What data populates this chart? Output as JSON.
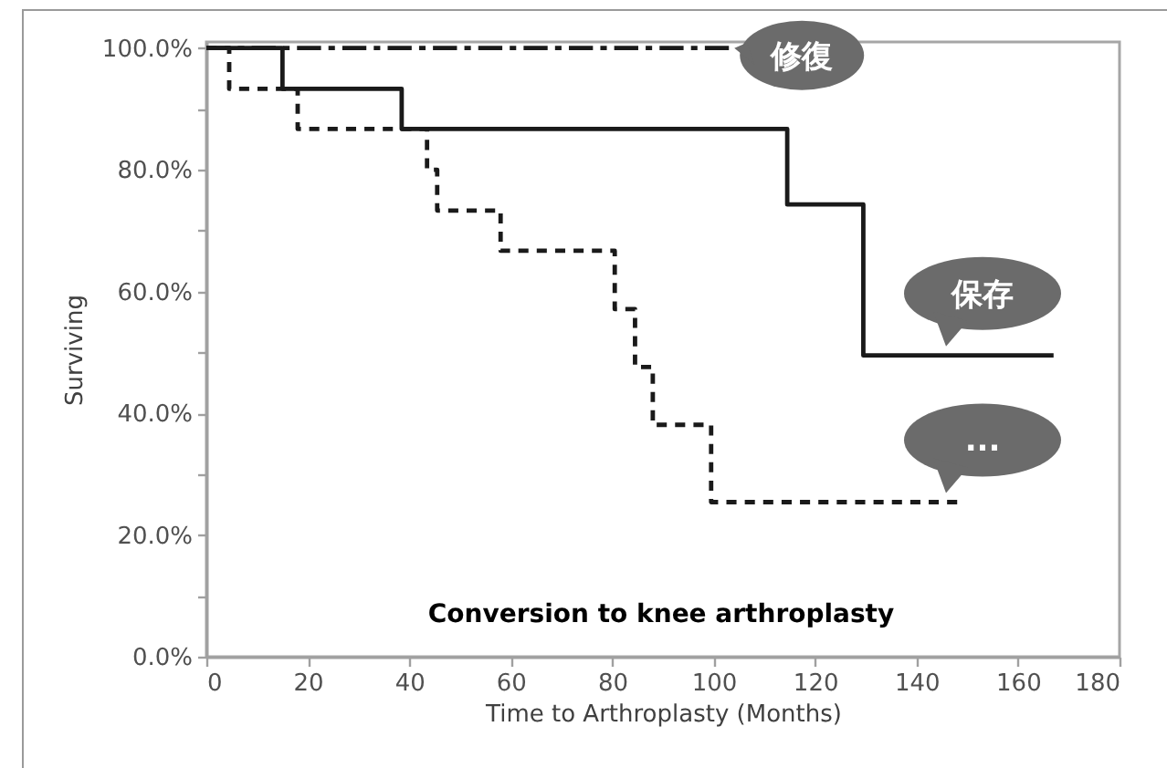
{
  "chart_data": {
    "type": "step",
    "xlabel": "Time to Arthroplasty (Months)",
    "ylabel": "Surviving",
    "annotations": [
      "Conversion to knee arthroplasty"
    ],
    "xlim": [
      0,
      180
    ],
    "xticks": [
      0,
      20,
      40,
      60,
      80,
      100,
      120,
      140,
      160,
      180
    ],
    "ylim": [
      0,
      101
    ],
    "yticks": [
      {
        "value": 0,
        "label": "0.0%"
      },
      {
        "value": 10,
        "label": null
      },
      {
        "value": 20,
        "label": "20.0%"
      },
      {
        "value": 30,
        "label": null
      },
      {
        "value": 40,
        "label": "40.0%"
      },
      {
        "value": 50,
        "label": null
      },
      {
        "value": 60,
        "label": "60.0%"
      },
      {
        "value": 70,
        "label": null
      },
      {
        "value": 80,
        "label": "80.0%"
      },
      {
        "value": 90,
        "label": null
      },
      {
        "value": 100,
        "label": "100.0%"
      }
    ],
    "legend": false,
    "series": [
      {
        "name": "修復",
        "color": "#1a1a1a",
        "line_style": "dashed",
        "x": [
          0,
          103
        ],
        "values": [
          100,
          100
        ]
      },
      {
        "name": "保存",
        "color": "#1a1a1a",
        "line_style": "solid",
        "x": [
          0,
          15,
          38.5,
          114.5,
          129.5,
          167
        ],
        "values": [
          100,
          93.3,
          86.7,
          74.3,
          49.5,
          49.5
        ]
      },
      {
        "name": "...",
        "color": "#1a1a1a",
        "line_style": "dotted",
        "x": [
          0,
          4.5,
          18,
          43.5,
          45.5,
          58,
          80.5,
          84.5,
          88,
          99.5,
          148
        ],
        "values": [
          100,
          93.3,
          86.7,
          80,
          73.3,
          66.7,
          57.1,
          47.6,
          38.1,
          25.4,
          25.4
        ]
      }
    ]
  }
}
